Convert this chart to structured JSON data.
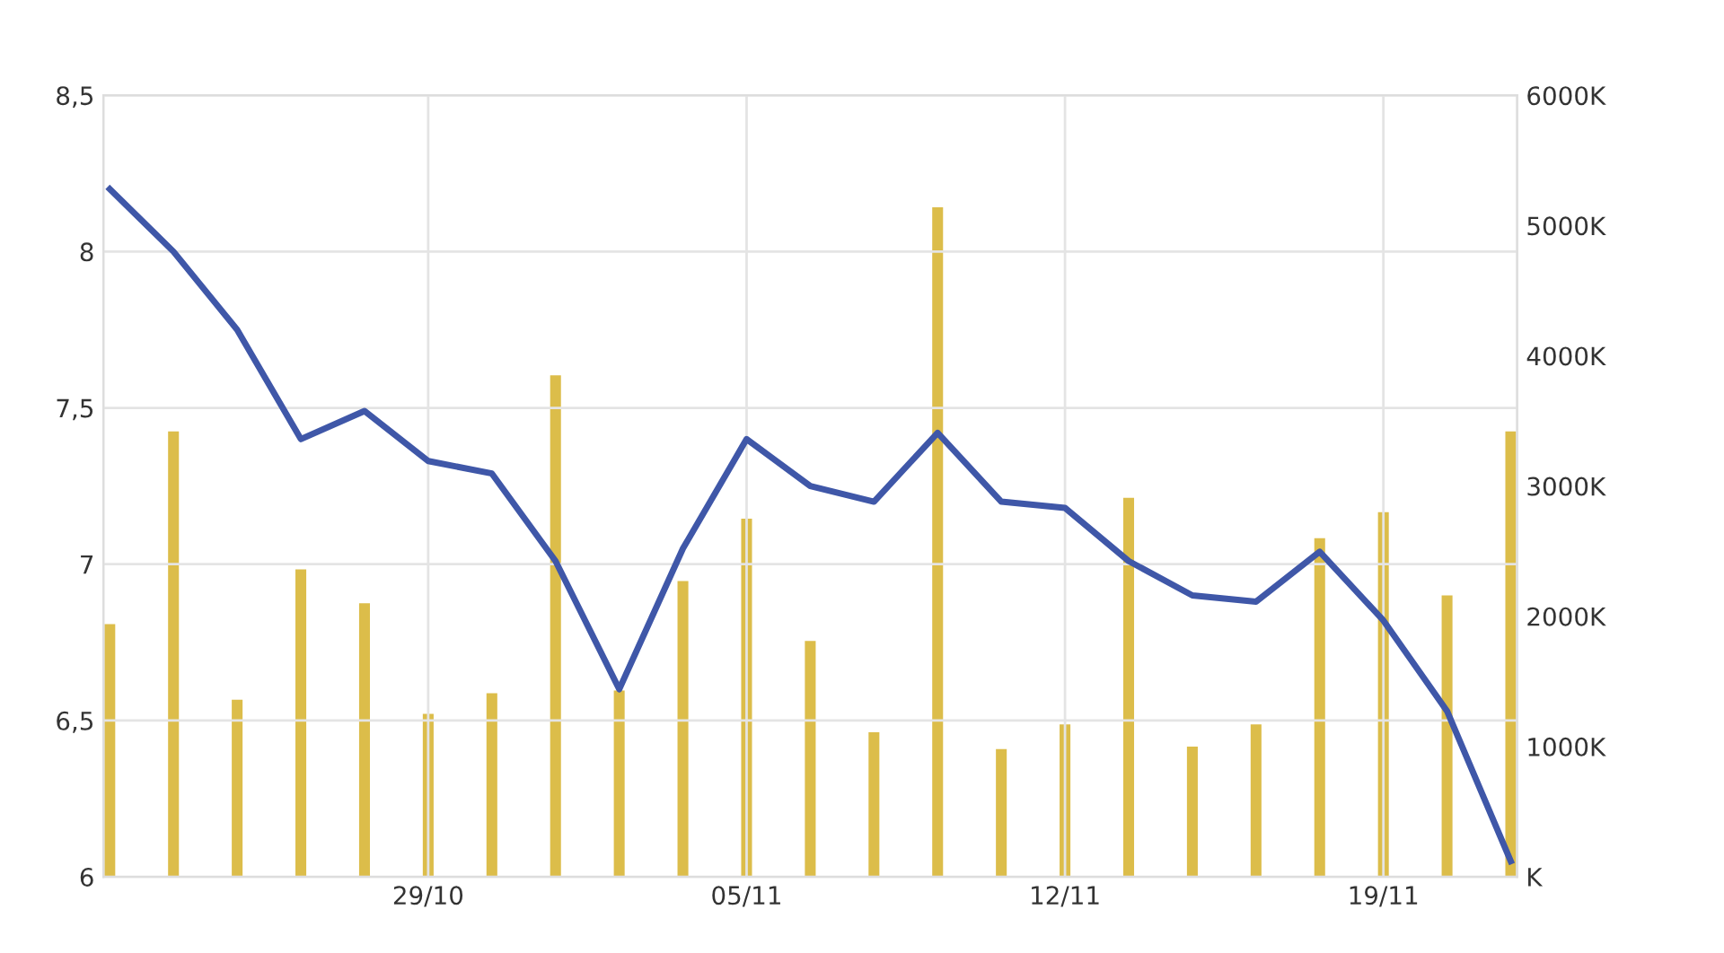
{
  "chart_data": {
    "type": "line",
    "categories": [
      null,
      null,
      null,
      null,
      null,
      "29/10",
      null,
      null,
      null,
      null,
      "05/11",
      null,
      null,
      null,
      null,
      "12/11",
      null,
      null,
      null,
      null,
      "19/11",
      null,
      null
    ],
    "series": [
      {
        "type": "bar",
        "axis": "y2",
        "color": "#dcbd4a",
        "values": [
          1940,
          3420,
          1360,
          2360,
          2100,
          1250,
          1410,
          3850,
          1430,
          2270,
          2750,
          1810,
          1110,
          5140,
          980,
          1170,
          2910,
          1000,
          1170,
          2600,
          2800,
          2160,
          3420
        ]
      },
      {
        "axis": "y",
        "color": "#3f57a8",
        "values": [
          8.2,
          8.0,
          7.75,
          7.4,
          7.49,
          7.33,
          7.29,
          7.01,
          6.6,
          7.05,
          7.4,
          7.25,
          7.2,
          7.42,
          7.2,
          7.18,
          7.01,
          6.9,
          6.88,
          7.04,
          6.82,
          6.53,
          6.05
        ]
      }
    ],
    "ylim": [
      6,
      8.5
    ],
    "yticks": [
      6,
      {
        "value": 6.5,
        "label": "6,5"
      },
      7,
      {
        "value": 7.5,
        "label": "7,5"
      },
      8,
      {
        "value": 8.5,
        "label": "8,5"
      }
    ],
    "y2lim": [
      0,
      6000
    ],
    "y2ticks": [
      {
        "value": 0,
        "label": "K"
      },
      {
        "value": 1000,
        "label": "1000K"
      },
      {
        "value": 2000,
        "label": "2000K"
      },
      {
        "value": 3000,
        "label": "3000K"
      },
      {
        "value": 4000,
        "label": "4000K"
      },
      {
        "value": 5000,
        "label": "5000K"
      },
      {
        "value": 6000,
        "label": "6000K"
      }
    ],
    "grid": true,
    "marker": "none",
    "line_style": "solid"
  }
}
